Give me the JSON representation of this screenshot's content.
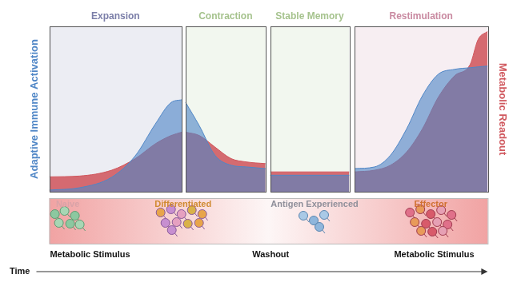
{
  "chart_data": {
    "type": "area",
    "x": [
      0,
      6.9,
      14.2,
      19.6,
      24.2,
      27.8,
      30.2,
      30.65,
      31.1,
      34.2,
      37.8,
      41.5,
      45,
      49.3,
      49.85,
      50.4,
      59.4,
      68.4,
      69.0,
      69.6,
      74.2,
      77.8,
      81.5,
      85.1,
      88.7,
      92.4,
      96,
      97.8,
      100
    ],
    "xlim": [
      0,
      100
    ],
    "ylim": [
      0,
      100
    ],
    "y2lim": [
      0,
      100
    ],
    "tick_labels": false,
    "grid": false,
    "x_label": "Time",
    "series": [
      {
        "name": "Adaptive Immune Activation",
        "color": "#4f86c6",
        "values": [
          1,
          2.4,
          8.7,
          21.7,
          41,
          54,
          55.6,
          null,
          54,
          40,
          22,
          16,
          15,
          14,
          null,
          10,
          10,
          10,
          null,
          14,
          15,
          22,
          38,
          58,
          71,
          74,
          75,
          75.5,
          76
        ]
      },
      {
        "name": "Metabolic Readout",
        "color": "#d0585e",
        "axis": "y2",
        "values": [
          9,
          9.5,
          13,
          20,
          29,
          34,
          36,
          null,
          36,
          34,
          27,
          20,
          18,
          17,
          null,
          12,
          12,
          12,
          null,
          12,
          13,
          16,
          24,
          38,
          57,
          70,
          77,
          92,
          97
        ]
      }
    ],
    "phases": [
      {
        "name": "Expansion",
        "start": 0,
        "end": 30.2,
        "color": "#7b7ea8"
      },
      {
        "name": "Contraction",
        "start": 31.1,
        "end": 49.3,
        "color": "#a6c38e"
      },
      {
        "name": "Stable Memory",
        "start": 50.4,
        "end": 68.4,
        "color": "#a6c38e"
      },
      {
        "name": "Restimulation",
        "start": 69.6,
        "end": 100,
        "color": "#c98aa1"
      }
    ],
    "stages": [
      {
        "label": "Naive",
        "x": 4.2,
        "color": "#d9a3a8"
      },
      {
        "label": "Differentiated",
        "x": 30.5,
        "color": "#d08a30"
      },
      {
        "label": "Antigen Experienced",
        "x": 60.5,
        "color": "#8f8f9a"
      },
      {
        "label": "Effector",
        "x": 87,
        "color": "#d07030"
      }
    ],
    "events": [
      {
        "label": "Metabolic Stimulus",
        "x": 9.3
      },
      {
        "label": "Washout",
        "x": 50.5
      },
      {
        "label": "Metabolic Stimulus",
        "x": 87.8
      }
    ]
  }
}
